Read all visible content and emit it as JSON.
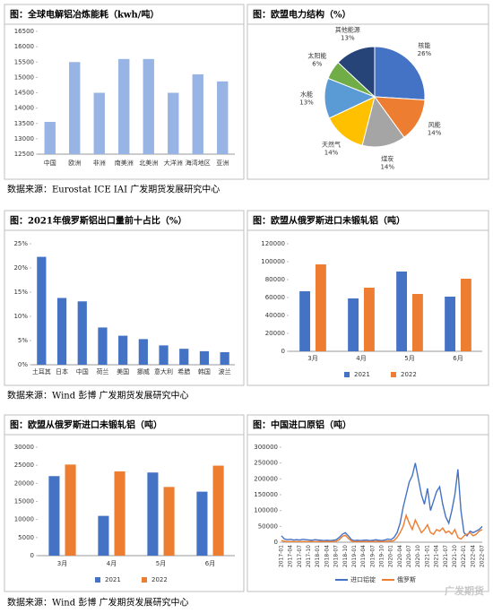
{
  "chart_data": [
    {
      "type": "bar",
      "title": "图：全球电解铝冶炼能耗（kwh/吨）",
      "categories": [
        "中国",
        "欧洲",
        "非洲",
        "南美洲",
        "北美洲",
        "大洋洲",
        "海湾地区",
        "亚洲"
      ],
      "values": [
        13550,
        15500,
        14500,
        15600,
        15600,
        14500,
        15100,
        14870
      ],
      "color": "#98b4e4",
      "ylim": [
        12500,
        16500
      ],
      "yticks": [
        12500,
        13000,
        13500,
        14000,
        14500,
        15000,
        15500,
        16000,
        16500
      ]
    },
    {
      "type": "pie",
      "title": "图：欧盟电力结构（%）",
      "categories": [
        "核能",
        "风能",
        "煤炭",
        "天然气",
        "水能",
        "太阳能",
        "其他能源"
      ],
      "values": [
        26,
        14,
        14,
        14,
        13,
        6,
        13
      ],
      "value_labels": [
        "26%",
        "14%",
        "14%",
        "14%",
        "13%",
        "6%",
        "13%"
      ],
      "colors": [
        "#4472c4",
        "#ed7d31",
        "#a5a5a5",
        "#ffc000",
        "#5b9bd5",
        "#70ad47",
        "#264478"
      ]
    },
    {
      "type": "bar",
      "title": "图：2021年俄罗斯铝出口量前十占比（%）",
      "categories": [
        "土耳其",
        "日本",
        "中国",
        "荷兰",
        "美国",
        "挪威",
        "意大利",
        "希腊",
        "韩国",
        "波兰"
      ],
      "values": [
        22.3,
        13.8,
        13.1,
        7.7,
        6.0,
        5.3,
        4.0,
        3.3,
        2.8,
        2.6
      ],
      "color": "#4472c4",
      "ylim": [
        0,
        25
      ],
      "yticks": [
        {
          "value": 0,
          "label": "0%"
        },
        {
          "value": 5,
          "label": "5%"
        },
        {
          "value": 10,
          "label": "10%"
        },
        {
          "value": 15,
          "label": "15%"
        },
        {
          "value": 20,
          "label": "20%"
        },
        {
          "value": 25,
          "label": "25%"
        }
      ]
    },
    {
      "type": "bar",
      "title": "图：欧盟从俄罗斯进口未锻轧铝（吨）",
      "categories": [
        "3月",
        "4月",
        "5月",
        "6月"
      ],
      "series": [
        {
          "name": "2021",
          "color": "#4472c4",
          "values": [
            67000,
            59000,
            89000,
            61000
          ]
        },
        {
          "name": "2022",
          "color": "#ed7d31",
          "values": [
            97000,
            71000,
            64000,
            81000
          ]
        }
      ],
      "ylim": [
        0,
        120000
      ],
      "yticks": [
        0,
        20000,
        40000,
        60000,
        80000,
        100000,
        120000
      ]
    },
    {
      "type": "bar",
      "title": "图：欧盟从俄罗斯进口未锻轧铝（吨）",
      "categories": [
        "3月",
        "4月",
        "5月",
        "6月"
      ],
      "series": [
        {
          "name": "2021",
          "color": "#4472c4",
          "values": [
            22000,
            11000,
            23000,
            17700
          ]
        },
        {
          "name": "2022",
          "color": "#ed7d31",
          "values": [
            25200,
            23300,
            19000,
            24900
          ]
        }
      ],
      "ylim": [
        0,
        30000
      ],
      "yticks": [
        0,
        5000,
        10000,
        15000,
        20000,
        25000,
        30000
      ]
    },
    {
      "type": "line",
      "title": "图：中国进口原铝（吨）",
      "categories": [
        "2017-01",
        null,
        null,
        "2017-04",
        null,
        null,
        "2017-07",
        null,
        null,
        "2017-10",
        null,
        null,
        "2018-01",
        null,
        null,
        "2018-04",
        null,
        null,
        "2018-07",
        null,
        null,
        "2018-10",
        null,
        null,
        "2019-01",
        null,
        null,
        "2019-04",
        null,
        null,
        "2019-07",
        null,
        null,
        "2019-10",
        null,
        null,
        "2020-01",
        null,
        null,
        "2020-04",
        null,
        null,
        "2020-07",
        null,
        null,
        "2020-10",
        null,
        null,
        "2021-01",
        null,
        null,
        "2021-04",
        null,
        null,
        "2021-07",
        null,
        null,
        "2021-10",
        null,
        null,
        "2022-01",
        null,
        null,
        "2022-04",
        null,
        null,
        "2022-07"
      ],
      "series": [
        {
          "name": "进口铝锭",
          "color": "#4472c4",
          "values": [
            20000,
            10000,
            8000,
            9000,
            7000,
            8000,
            7000,
            9000,
            8000,
            7000,
            6000,
            8000,
            7000,
            6000,
            5000,
            6000,
            5000,
            6000,
            8000,
            15000,
            25000,
            30000,
            20000,
            8000,
            5000,
            6000,
            5000,
            6000,
            7000,
            5000,
            6000,
            8000,
            6000,
            5000,
            7000,
            10000,
            8000,
            15000,
            30000,
            60000,
            110000,
            150000,
            190000,
            210000,
            250000,
            200000,
            150000,
            120000,
            170000,
            100000,
            130000,
            160000,
            175000,
            120000,
            80000,
            60000,
            100000,
            150000,
            230000,
            100000,
            30000,
            20000,
            35000,
            30000,
            35000,
            40000,
            50000
          ]
        },
        {
          "name": "俄罗斯",
          "color": "#ed7d31",
          "values": [
            5000,
            3000,
            2000,
            2000,
            2000,
            2000,
            2000,
            2000,
            2000,
            2000,
            2000,
            2000,
            2000,
            2000,
            2000,
            2000,
            2000,
            2000,
            3000,
            8000,
            18000,
            22000,
            12000,
            4000,
            2000,
            2000,
            2000,
            2000,
            2000,
            2000,
            2000,
            3000,
            2000,
            2000,
            2000,
            4000,
            3000,
            5000,
            15000,
            30000,
            50000,
            85000,
            60000,
            40000,
            70000,
            50000,
            30000,
            40000,
            55000,
            30000,
            25000,
            40000,
            35000,
            45000,
            30000,
            35000,
            25000,
            40000,
            15000,
            10000,
            20000,
            25000,
            30000,
            20000,
            25000,
            35000,
            40000
          ]
        }
      ],
      "ylim": [
        0,
        300000
      ],
      "yticks": [
        0,
        50000,
        100000,
        150000,
        200000,
        250000,
        300000
      ]
    }
  ],
  "sources": [
    "数据来源：Eurostat ICE IAI 广发期货发展研究中心",
    "数据来源：Wind 彭博 广发期货发展研究中心",
    "数据来源：Wind 彭博 广发期货发展研究中心"
  ],
  "watermark": "广发期货"
}
